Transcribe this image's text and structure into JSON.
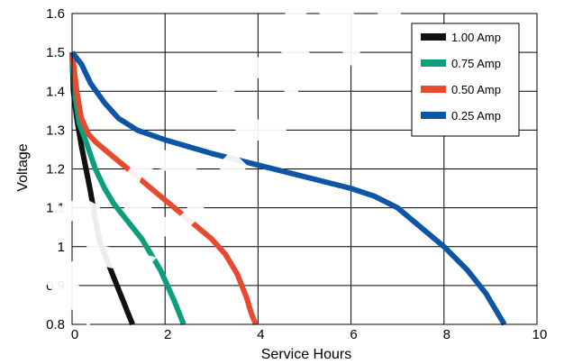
{
  "chart_data": {
    "type": "line",
    "title": "",
    "xlabel": "Service Hours",
    "ylabel": "Voltage",
    "xlim": [
      0,
      10
    ],
    "ylim": [
      0.8,
      1.6
    ],
    "x_ticks": [
      "0",
      "2",
      "4",
      "6",
      "8",
      "10"
    ],
    "y_ticks": [
      "0.8",
      "0.9",
      "1",
      "1.1",
      "1.2",
      "1.3",
      "1.4",
      "1.5",
      "1.6"
    ],
    "grid": true,
    "legend_position": "top-right",
    "series": [
      {
        "name": "1.00 Amp",
        "color": "#111111",
        "points": [
          [
            0,
            1.5
          ],
          [
            0.03,
            1.4
          ],
          [
            0.1,
            1.33
          ],
          [
            0.2,
            1.26
          ],
          [
            0.3,
            1.2
          ],
          [
            0.4,
            1.14
          ],
          [
            0.5,
            1.07
          ],
          [
            0.6,
            1.01
          ],
          [
            0.7,
            0.98
          ],
          [
            0.8,
            0.95
          ],
          [
            0.9,
            0.92
          ],
          [
            1.0,
            0.89
          ],
          [
            1.1,
            0.86
          ],
          [
            1.2,
            0.83
          ],
          [
            1.3,
            0.8
          ]
        ]
      },
      {
        "name": "0.75 Amp",
        "color": "#0e9e7e",
        "points": [
          [
            0,
            1.5
          ],
          [
            0.05,
            1.4
          ],
          [
            0.15,
            1.32
          ],
          [
            0.3,
            1.27
          ],
          [
            0.5,
            1.2
          ],
          [
            0.7,
            1.15
          ],
          [
            0.9,
            1.11
          ],
          [
            1.1,
            1.08
          ],
          [
            1.3,
            1.05
          ],
          [
            1.5,
            1.02
          ],
          [
            1.7,
            0.98
          ],
          [
            1.9,
            0.94
          ],
          [
            2.05,
            0.9
          ],
          [
            2.2,
            0.86
          ],
          [
            2.3,
            0.83
          ],
          [
            2.4,
            0.8
          ]
        ]
      },
      {
        "name": "0.50 Amp",
        "color": "#e84a2f",
        "points": [
          [
            0,
            1.5
          ],
          [
            0.1,
            1.4
          ],
          [
            0.2,
            1.33
          ],
          [
            0.35,
            1.29
          ],
          [
            0.5,
            1.27
          ],
          [
            0.8,
            1.24
          ],
          [
            1.1,
            1.21
          ],
          [
            1.5,
            1.17
          ],
          [
            2.0,
            1.12
          ],
          [
            2.5,
            1.07
          ],
          [
            3.0,
            1.02
          ],
          [
            3.3,
            0.98
          ],
          [
            3.55,
            0.93
          ],
          [
            3.75,
            0.87
          ],
          [
            3.85,
            0.83
          ],
          [
            3.95,
            0.8
          ]
        ]
      },
      {
        "name": "0.25 Amp",
        "color": "#0d56a6",
        "points": [
          [
            0,
            1.5
          ],
          [
            0.2,
            1.47
          ],
          [
            0.4,
            1.42
          ],
          [
            0.7,
            1.37
          ],
          [
            1.0,
            1.33
          ],
          [
            1.4,
            1.3
          ],
          [
            2.0,
            1.275
          ],
          [
            3.0,
            1.24
          ],
          [
            4.0,
            1.21
          ],
          [
            5.0,
            1.18
          ],
          [
            6.0,
            1.15
          ],
          [
            6.5,
            1.13
          ],
          [
            7.0,
            1.1
          ],
          [
            7.5,
            1.05
          ],
          [
            8.0,
            1.0
          ],
          [
            8.5,
            0.94
          ],
          [
            8.9,
            0.88
          ],
          [
            9.2,
            0.82
          ],
          [
            9.3,
            0.8
          ]
        ]
      }
    ]
  }
}
